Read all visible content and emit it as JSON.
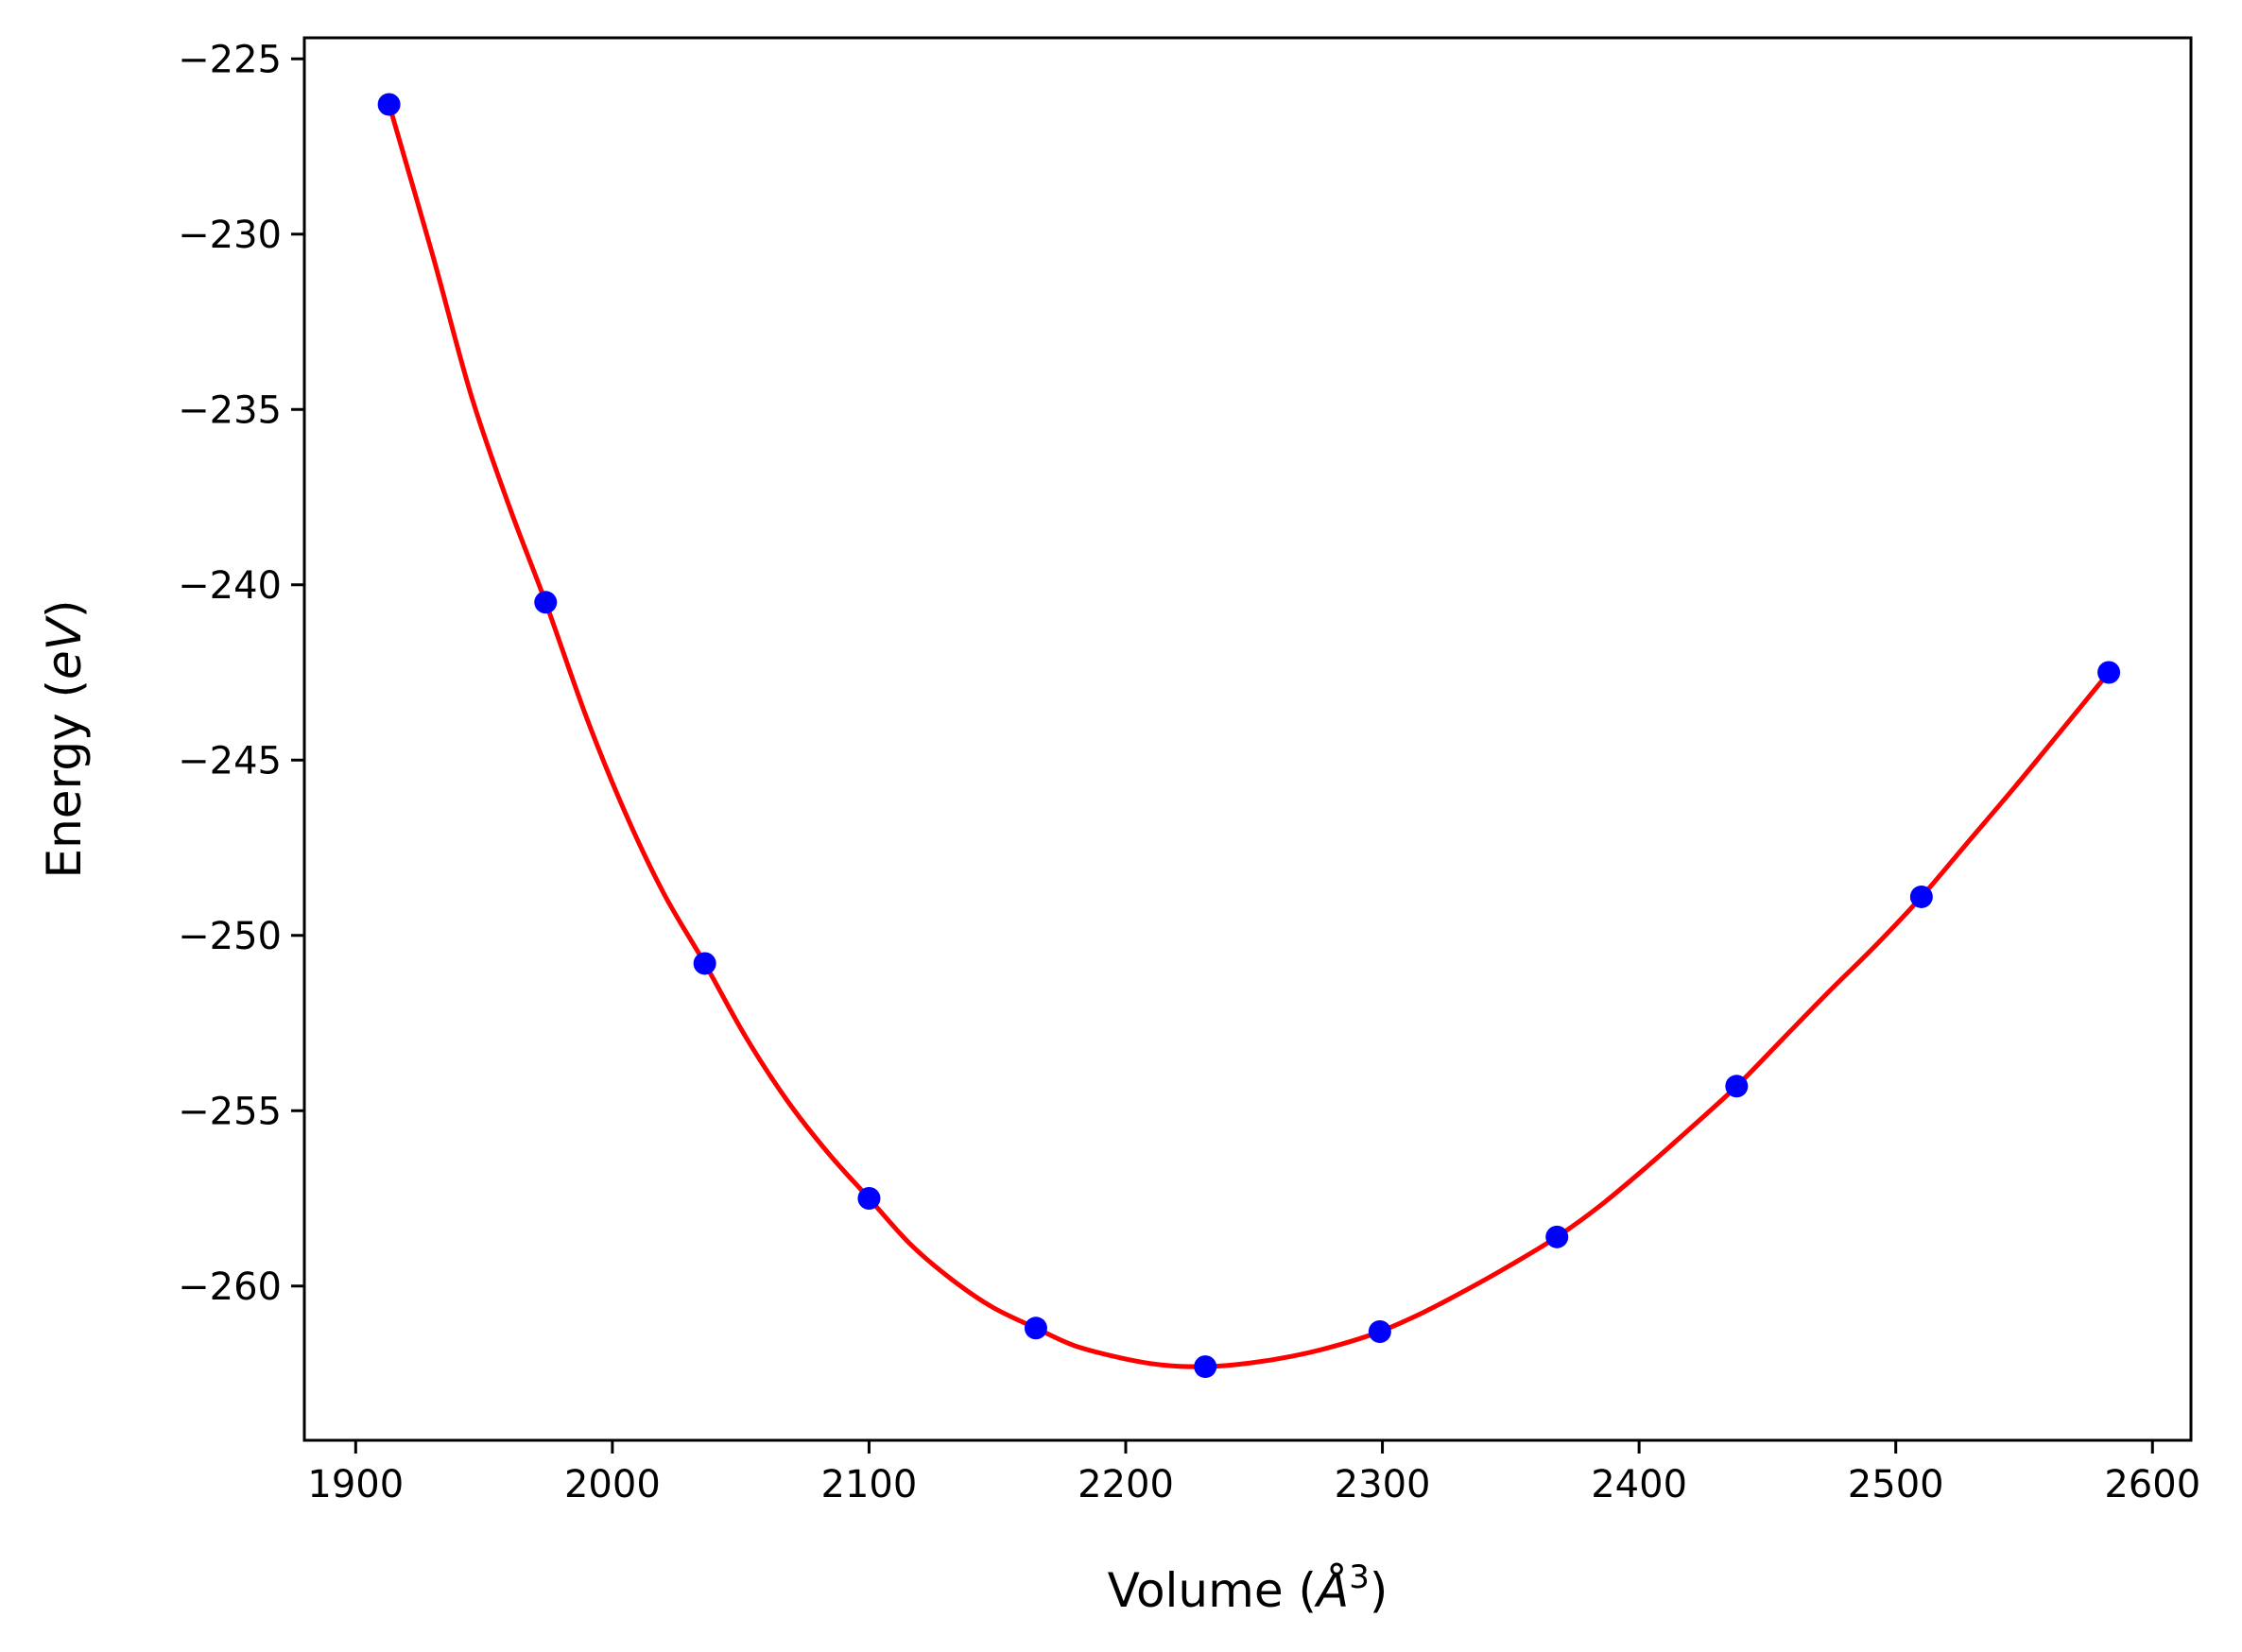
{
  "chart_data": {
    "type": "line",
    "xlabel": "Volume (Å³)",
    "xlabel_parts": {
      "prefix": "Volume (",
      "symbol": "Å",
      "exponent": "3",
      "suffix": ")"
    },
    "ylabel": "Energy (eV)",
    "ylabel_parts": {
      "prefix": "Energy (",
      "unit": "eV",
      "suffix": ")"
    },
    "xlim": [
      1880,
      2615
    ],
    "ylim": [
      -264.4,
      -224.4
    ],
    "xticks": [
      1900,
      2000,
      2100,
      2200,
      2300,
      2400,
      2500,
      2600
    ],
    "xtick_labels": [
      "1900",
      "2000",
      "2100",
      "2200",
      "2300",
      "2400",
      "2500",
      "2600"
    ],
    "yticks": [
      -225,
      -230,
      -235,
      -240,
      -245,
      -250,
      -255,
      -260
    ],
    "ytick_labels": [
      "−225",
      "−230",
      "−235",
      "−240",
      "−245",
      "−250",
      "−255",
      "−260"
    ],
    "grid": false,
    "series": [
      {
        "kind": "scatter",
        "color": "#0000ff",
        "x": [
          1913,
          1974,
          2036,
          2100,
          2165,
          2231,
          2299,
          2368,
          2438,
          2510,
          2583
        ],
        "y": [
          -226.3,
          -240.5,
          -250.8,
          -257.5,
          -261.2,
          -262.3,
          -261.3,
          -258.6,
          -254.3,
          -248.9,
          -242.5
        ]
      },
      {
        "kind": "fit",
        "color": "#ff0000",
        "x": [
          1913,
          1930,
          1945,
          1960,
          1974,
          1990,
          2005,
          2020,
          2036,
          2052,
          2068,
          2084,
          2100,
          2116,
          2132,
          2148,
          2165,
          2180,
          2198,
          2214,
          2231,
          2248,
          2265,
          2282,
          2299,
          2316,
          2333,
          2350,
          2368,
          2385,
          2403,
          2420,
          2438,
          2456,
          2474,
          2492,
          2510,
          2528,
          2546,
          2564,
          2583
        ],
        "y": [
          -226.3,
          -230.6,
          -234.6,
          -237.8,
          -240.5,
          -243.8,
          -246.5,
          -248.8,
          -250.8,
          -252.9,
          -254.7,
          -256.2,
          -257.5,
          -258.8,
          -259.8,
          -260.6,
          -261.2,
          -261.7,
          -262.05,
          -262.25,
          -262.3,
          -262.2,
          -262.0,
          -261.7,
          -261.3,
          -260.75,
          -260.1,
          -259.4,
          -258.6,
          -257.7,
          -256.6,
          -255.5,
          -254.3,
          -252.95,
          -251.6,
          -250.3,
          -248.9,
          -247.35,
          -245.8,
          -244.2,
          -242.5
        ]
      }
    ]
  }
}
